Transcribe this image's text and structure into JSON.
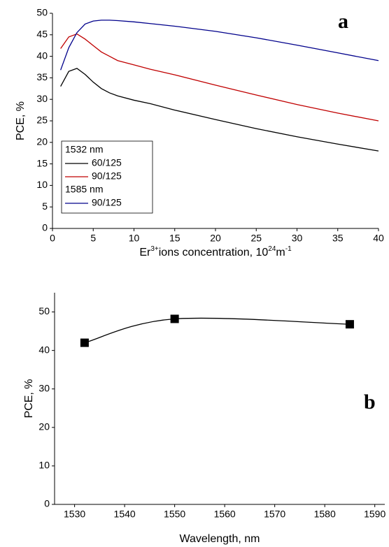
{
  "chart_data": [
    {
      "type": "line",
      "annotation": "a",
      "xlabel": [
        "Er",
        "3+",
        "ions concentration, 10",
        "24",
        "m",
        "-1"
      ],
      "ylabel": "PCE, %",
      "x": [
        1,
        2,
        3,
        4,
        5,
        6,
        7,
        8,
        10,
        12,
        15,
        20,
        25,
        30,
        35,
        40
      ],
      "series": [
        {
          "group": "1532 nm",
          "name": "60/125",
          "color": "#000000",
          "values": [
            33,
            36.5,
            37.2,
            35.8,
            34,
            32.5,
            31.5,
            30.8,
            29.8,
            29,
            27.5,
            25.3,
            23.2,
            21.3,
            19.6,
            18
          ]
        },
        {
          "group": "1532 nm",
          "name": "90/125",
          "color": "#c00000",
          "values": [
            41.8,
            44.5,
            45.2,
            44,
            42.5,
            41,
            40,
            39,
            38,
            37,
            35.7,
            33.3,
            31,
            28.8,
            26.8,
            25
          ]
        },
        {
          "group": "1585 nm",
          "name": "90/125",
          "color": "#00008b",
          "values": [
            36.8,
            42,
            45.5,
            47.5,
            48.2,
            48.4,
            48.4,
            48.3,
            48,
            47.6,
            47,
            45.8,
            44.3,
            42.6,
            40.8,
            39
          ]
        }
      ],
      "xlim": [
        0,
        40
      ],
      "xticks": [
        0,
        5,
        10,
        15,
        20,
        25,
        30,
        35,
        40
      ],
      "ylim": [
        0,
        50
      ],
      "yticks": [
        0,
        5,
        10,
        15,
        20,
        25,
        30,
        35,
        40,
        45,
        50
      ],
      "legend": "lower left"
    },
    {
      "type": "line",
      "annotation": "b",
      "xlabel": [
        "Wavelength, nm"
      ],
      "ylabel": "PCE, %",
      "x": [
        1532,
        1550,
        1585
      ],
      "series": [
        {
          "color": "#000000",
          "marker": "square",
          "smooth": true,
          "values": [
            42,
            48.2,
            46.8
          ]
        }
      ],
      "xlim": [
        1526,
        1592
      ],
      "xticks": [
        1530,
        1540,
        1550,
        1560,
        1570,
        1580,
        1590
      ],
      "ylim": [
        0,
        55
      ],
      "yticks": [
        0,
        10,
        20,
        30,
        40,
        50
      ]
    }
  ]
}
